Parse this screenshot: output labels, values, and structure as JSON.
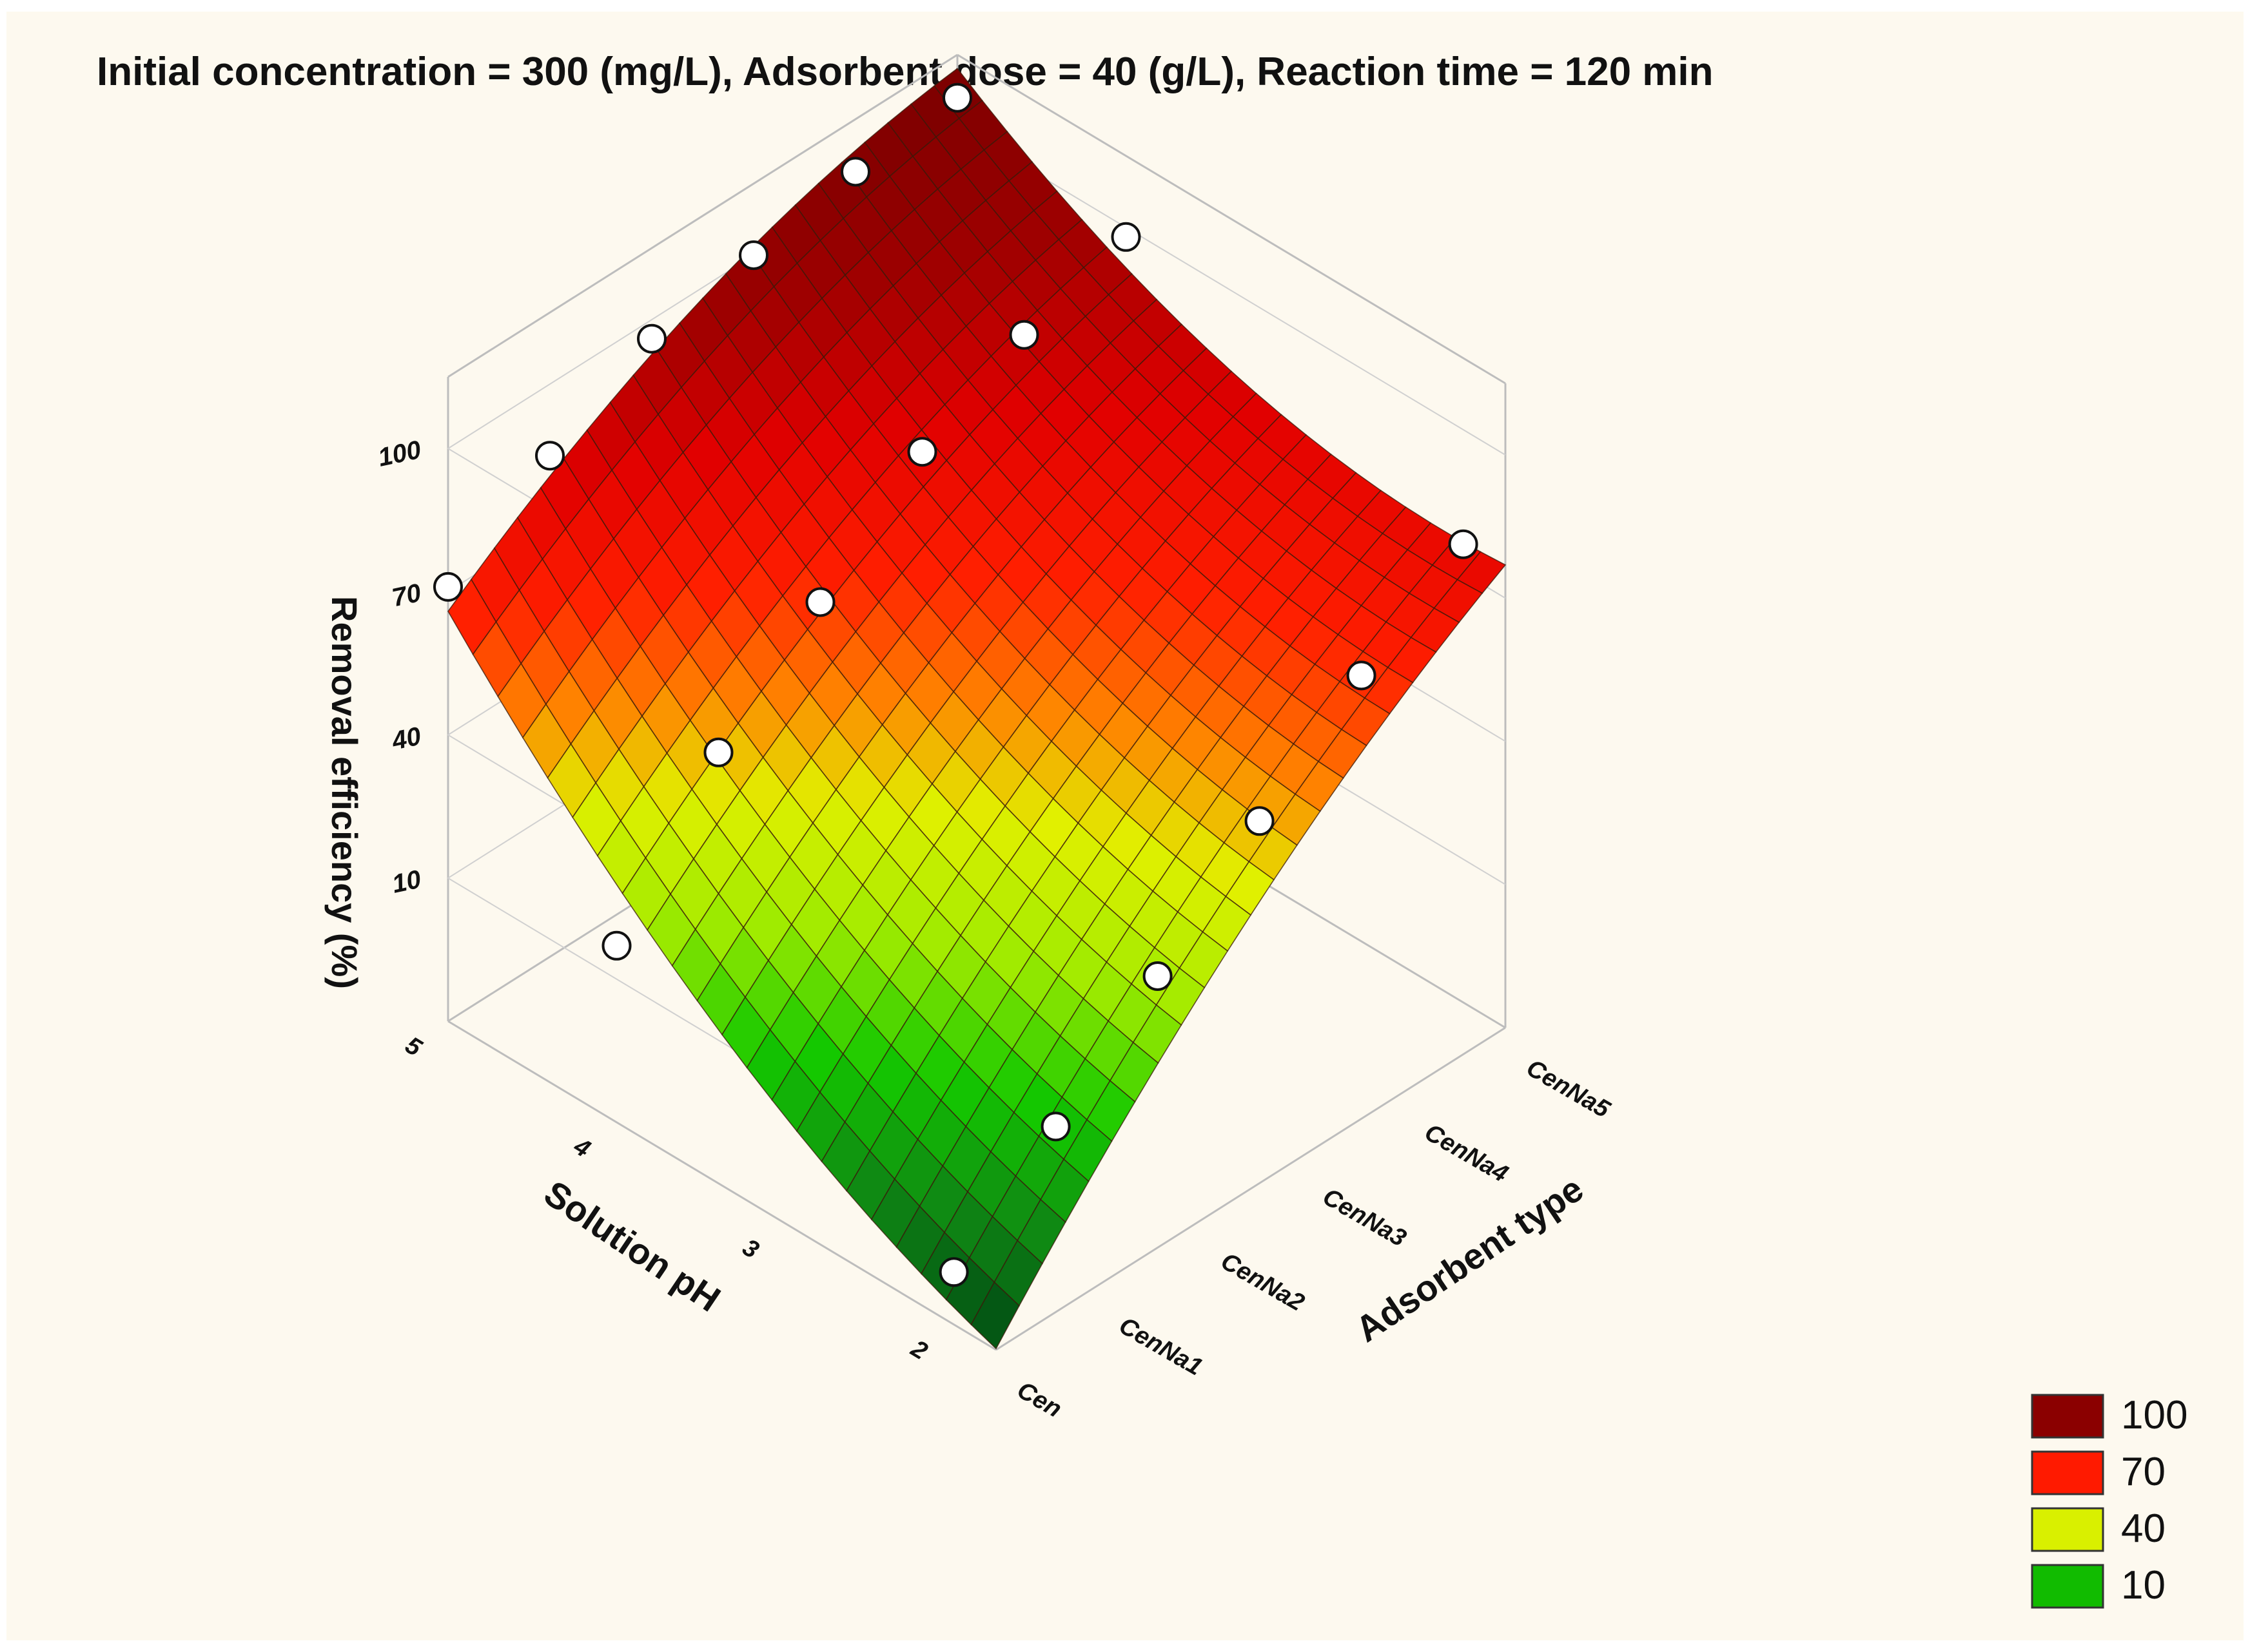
{
  "chart_data": {
    "type": "surface3d",
    "title": "Initial concentration = 300 (mg/L), Adsorbent dose = 40 (g/L), Reaction time = 120 min",
    "xlabel": "Solution pH",
    "ylabel": "Adsorbent type",
    "zlabel": "Removal efficiency (%)",
    "x_ticks": [
      "2",
      "3",
      "4",
      "5"
    ],
    "x_range": [
      1.75,
      5
    ],
    "y_ticks": [
      "Cen",
      "CenNa1",
      "CenNa2",
      "CenNa3",
      "CenNa4",
      "CenNa5"
    ],
    "z_ticks": [
      "10",
      "40",
      "70",
      "100"
    ],
    "z_range": [
      -20,
      115
    ],
    "grid": true,
    "legend_position": "bottom-right",
    "legend": [
      {
        "label": "100",
        "color": "#8b0000"
      },
      {
        "label": "70",
        "color": "#ff1a00"
      },
      {
        "label": "40",
        "color": "#d9f000"
      },
      {
        "label": "10",
        "color": "#11bb00"
      }
    ],
    "points": [
      {
        "ph": 5,
        "adsorbent": "Cen",
        "removal": 71
      },
      {
        "ph": 5,
        "adsorbent": "CenNa1",
        "removal": 85
      },
      {
        "ph": 5,
        "adsorbent": "CenNa2",
        "removal": 96
      },
      {
        "ph": 5,
        "adsorbent": "CenNa3",
        "removal": 100
      },
      {
        "ph": 5,
        "adsorbent": "CenNa4",
        "removal": 104
      },
      {
        "ph": 5,
        "adsorbent": "CenNa5",
        "removal": 106
      },
      {
        "ph": 4,
        "adsorbent": "Cen",
        "removal": 17
      },
      {
        "ph": 4,
        "adsorbent": "CenNa1",
        "removal": 44
      },
      {
        "ph": 4,
        "adsorbent": "CenNa2",
        "removal": 62
      },
      {
        "ph": 4,
        "adsorbent": "CenNa3",
        "removal": 80
      },
      {
        "ph": 4,
        "adsorbent": "CenNa4",
        "removal": 91
      },
      {
        "ph": 4,
        "adsorbent": "CenNa5",
        "removal": 98
      },
      {
        "ph": 2,
        "adsorbent": "Cen",
        "removal": -9
      },
      {
        "ph": 2,
        "adsorbent": "CenNa1",
        "removal": 8
      },
      {
        "ph": 2,
        "adsorbent": "CenNa2",
        "removal": 26
      },
      {
        "ph": 2,
        "adsorbent": "CenNa3",
        "removal": 45
      },
      {
        "ph": 2,
        "adsorbent": "CenNa4",
        "removal": 62
      },
      {
        "ph": 2,
        "adsorbent": "CenNa5",
        "removal": 76
      }
    ]
  }
}
